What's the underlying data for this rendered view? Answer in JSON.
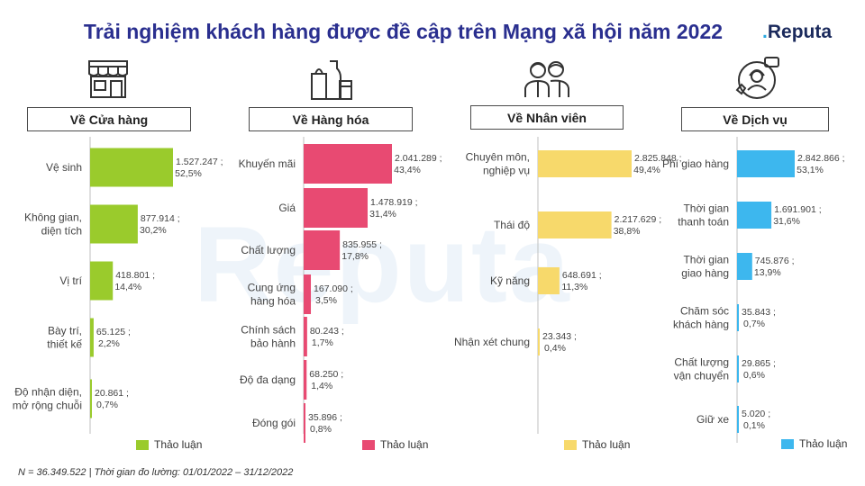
{
  "title": "Trải nghiệm khách hàng được đề cập trên Mạng xã hội năm 2022",
  "brand": {
    "name": "Reputa",
    "accent": "#29a8e0",
    "color": "#1b2a5c"
  },
  "watermark": "Reputa",
  "footnote": "N = 36.349.522 | Thời gian đo lường: 01/01/2022 – 31/12/2022",
  "legend_label": "Thảo luận",
  "chart_data": [
    {
      "type": "bar",
      "title": "Về Cửa hàng",
      "icon": "store-icon",
      "color": "#9acb2c",
      "categories": [
        [
          "Vệ sinh"
        ],
        [
          "Không gian,",
          "diện tích"
        ],
        [
          "Vị trí"
        ],
        [
          "Bày trí,",
          "thiết kế"
        ],
        [
          "Độ nhận diện,",
          "mở rộng chuỗi"
        ]
      ],
      "values": [
        1527247,
        877914,
        418801,
        65125,
        20861
      ],
      "value_labels": [
        "1.527.247 ;",
        "877.914 ;",
        "418.801 ;",
        "65.125 ;",
        "20.861 ;"
      ],
      "percent_labels": [
        "52,5%",
        "30,2%",
        "14,4%",
        "2,2%",
        "0,7%"
      ],
      "series": [
        {
          "name": "Thảo luận"
        }
      ]
    },
    {
      "type": "bar",
      "title": "Về Hàng hóa",
      "icon": "shopping-goods-icon",
      "color": "#e84a72",
      "categories": [
        [
          "Khuyến mãi"
        ],
        [
          "Giá"
        ],
        [
          "Chất lượng"
        ],
        [
          "Cung ứng",
          "hàng hóa"
        ],
        [
          "Chính sách",
          "bảo hành"
        ],
        [
          "Độ đa dạng"
        ],
        [
          "Đóng gói"
        ]
      ],
      "values": [
        2041289,
        1478919,
        835955,
        167090,
        80243,
        68250,
        35896
      ],
      "value_labels": [
        "2.041.289 ;",
        "1.478.919 ;",
        "835.955 ;",
        "167.090 ;",
        "80.243 ;",
        "68.250 ;",
        "35.896 ;"
      ],
      "percent_labels": [
        "43,4%",
        "31,4%",
        "17,8%",
        "3,5%",
        "1,7%",
        "1,4%",
        "0,8%"
      ],
      "series": [
        {
          "name": "Thảo luận"
        }
      ]
    },
    {
      "type": "bar",
      "title": "Về Nhân viên",
      "icon": "staff-icon",
      "color": "#f7d96b",
      "categories": [
        [
          "Chuyên môn,",
          "nghiệp vụ"
        ],
        [
          "Thái độ"
        ],
        [
          "Kỹ năng"
        ],
        [
          "Nhận xét chung"
        ]
      ],
      "values": [
        2825848,
        2217629,
        648691,
        23343
      ],
      "value_labels": [
        "2.825.848 ;",
        "2.217.629 ;",
        "648.691 ;",
        "23.343 ;"
      ],
      "percent_labels": [
        "49,4%",
        "38,8%",
        "11,3%",
        "0,4%"
      ],
      "series": [
        {
          "name": "Thảo luận"
        }
      ]
    },
    {
      "type": "bar",
      "title": "Về Dịch vụ",
      "icon": "customer-support-icon",
      "color": "#3db7ee",
      "categories": [
        [
          "Phí giao hàng"
        ],
        [
          "Thời gian",
          "thanh toán"
        ],
        [
          "Thời gian",
          "giao hàng"
        ],
        [
          "Chăm sóc",
          "khách hàng"
        ],
        [
          "Chất lượng",
          "vận chuyển"
        ],
        [
          "Giữ xe"
        ]
      ],
      "values": [
        2842866,
        1691901,
        745876,
        35843,
        29865,
        5020
      ],
      "value_labels": [
        "2.842.866 ;",
        "1.691.901 ;",
        "745.876 ;",
        "35.843 ;",
        "29.865 ;",
        "5.020 ;"
      ],
      "percent_labels": [
        "53,1%",
        "31,6%",
        "13,9%",
        "0,7%",
        "0,6%",
        "0,1%"
      ],
      "series": [
        {
          "name": "Thảo luận"
        }
      ]
    }
  ]
}
